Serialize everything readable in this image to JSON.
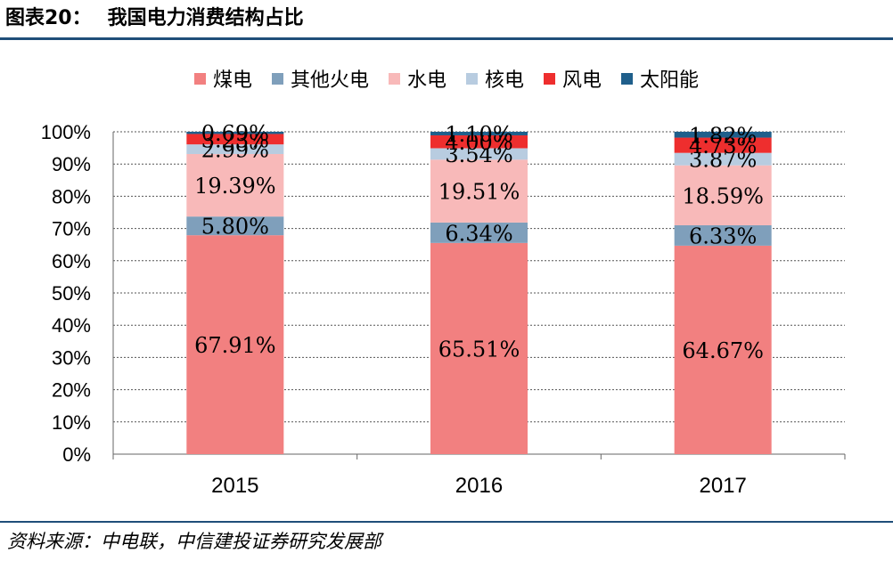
{
  "figure": {
    "label": "图表20：",
    "title": "我国电力消费结构占比",
    "source": "资料来源：中电联，中信建投证券研究发展部"
  },
  "chart_data": {
    "type": "bar",
    "stacked": true,
    "categories": [
      "2015",
      "2016",
      "2017"
    ],
    "y_ticks": [
      "0%",
      "10%",
      "20%",
      "30%",
      "40%",
      "50%",
      "60%",
      "70%",
      "80%",
      "90%",
      "100%"
    ],
    "ylim": [
      0,
      100
    ],
    "grid": true,
    "legend_position": "top",
    "series": [
      {
        "name": "煤电",
        "color": "#f28080",
        "values": [
          67.91,
          65.51,
          64.67
        ],
        "labels": [
          "67.91%",
          "65.51%",
          "64.67%"
        ]
      },
      {
        "name": "其他火电",
        "color": "#7f9fbb",
        "values": [
          5.8,
          6.34,
          6.33
        ],
        "labels": [
          "5.80%",
          "6.34%",
          "6.33%"
        ]
      },
      {
        "name": "水电",
        "color": "#f8b9b9",
        "values": [
          19.39,
          19.51,
          18.59
        ],
        "labels": [
          "19.39%",
          "19.51%",
          "18.59%"
        ]
      },
      {
        "name": "核电",
        "color": "#b8cce0",
        "values": [
          2.99,
          3.54,
          3.87
        ],
        "labels": [
          "2.99%",
          "3.54%",
          "3.87%"
        ]
      },
      {
        "name": "风电",
        "color": "#ee2e2e",
        "values": [
          3.23,
          4.0,
          4.73
        ],
        "labels": [
          "3.23%",
          "4.00%",
          "4.73%"
        ]
      },
      {
        "name": "太阳能",
        "color": "#1f5f8b",
        "values": [
          0.69,
          1.1,
          1.82
        ],
        "labels": [
          "0.69%",
          "1.10%",
          "1.82%"
        ]
      }
    ]
  }
}
